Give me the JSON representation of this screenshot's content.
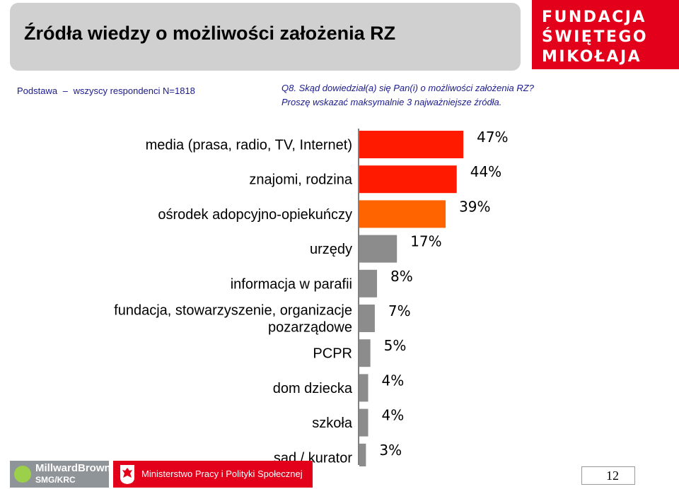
{
  "header": {
    "title": "Źródła wiedzy o możliwości założenia RZ",
    "logo_lines": [
      "FUNDACJA",
      "ŚWIĘTEGO",
      "MIKOŁAJA"
    ]
  },
  "base": {
    "label": "Podstawa",
    "dash": "–",
    "text": "wszyscy respondenci N=1818"
  },
  "question": {
    "line1": "Q8. Skąd dowiedział(a) się Pan(i) o możliwości założenia RZ?",
    "line2": "Proszę wskazać maksymalnie 3 najważniejsze źródła."
  },
  "colors": {
    "red": "#ff1a00",
    "orange": "#ff6400",
    "gray": "#8c8c8c"
  },
  "chart_data": {
    "type": "bar",
    "orientation": "horizontal",
    "categories": [
      "media (prasa, radio, TV, Internet)",
      "znajomi, rodzina",
      "ośrodek adopcyjno-opiekuńczy",
      "urzędy",
      "informacja w parafii",
      "fundacja, stowarzyszenie, organizacje\npozarządowe",
      "PCPR",
      "dom dziecka",
      "szkoła",
      "sąd / kurator"
    ],
    "values": [
      47,
      44,
      39,
      17,
      8,
      7,
      5,
      4,
      4,
      3
    ],
    "value_labels": [
      "47%",
      "44%",
      "39%",
      "17%",
      "8%",
      "7%",
      "5%",
      "4%",
      "4%",
      "3%"
    ],
    "bar_colors": [
      "red",
      "red",
      "orange",
      "gray",
      "gray",
      "gray",
      "gray",
      "gray",
      "gray",
      "gray"
    ],
    "xlim": [
      0,
      50
    ],
    "grid": false,
    "legend": "none"
  },
  "footer": {
    "millward_line1": "MillwardBrown",
    "millward_line2": "SMG/KRC",
    "ministry": "Ministerstwo Pracy i Polityki Społecznej",
    "page_number": "12"
  }
}
